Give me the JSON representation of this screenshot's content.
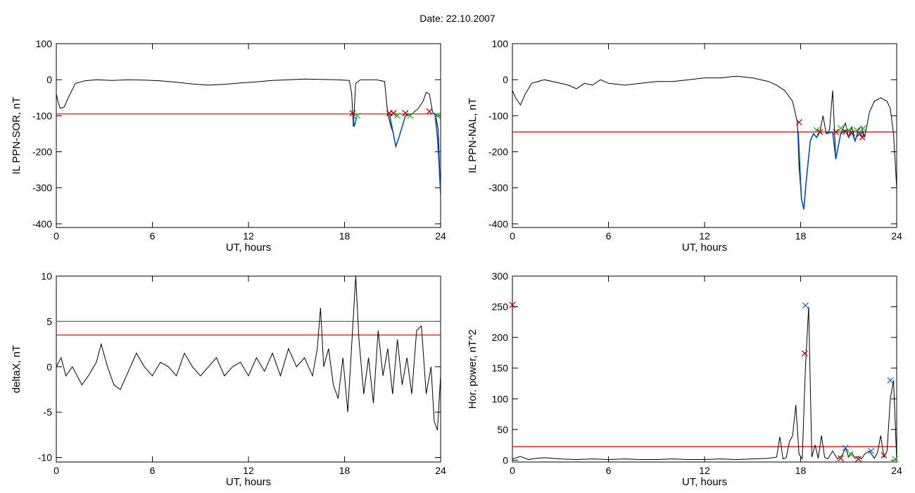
{
  "page_title": "Date:  22.10.2007",
  "colors": {
    "trace": "#000000",
    "threshold": "#cc0000",
    "upper_threshold": "#1a8a8a",
    "highlight": "#0050c8",
    "marker_red": "#c00000",
    "marker_green": "#20c020",
    "marker_blue": "#1f6fd6"
  },
  "chart_data": [
    {
      "type": "line",
      "title": "",
      "xlabel": "UT, hours",
      "ylabel": "IL PPN-SOR, nT",
      "xlim": [
        0,
        24
      ],
      "ylim": [
        -410,
        100
      ],
      "x_ticks": [
        0,
        6,
        12,
        18,
        24
      ],
      "y_ticks": [
        100,
        0,
        -100,
        -200,
        -300,
        -400
      ],
      "grid": false,
      "threshold": -95,
      "series": [
        {
          "x": [
            0,
            0.1,
            0.25,
            0.5,
            0.8,
            1.2,
            1.8,
            2.5,
            3.5,
            4.5,
            5.5,
            6.5,
            7.5,
            8.5,
            9.5,
            10.5,
            11.5,
            12.5,
            13.5,
            14.5,
            15.5,
            16.5,
            17.5,
            18.3,
            18.45,
            18.55,
            18.7,
            19,
            20,
            20.5,
            20.7,
            20.9,
            21.05,
            21.2,
            21.4,
            21.6,
            21.8,
            22.2,
            22.6,
            22.9,
            23.1,
            23.3,
            23.5,
            23.7,
            23.85,
            24
          ],
          "y": [
            -40,
            -60,
            -80,
            -75,
            -45,
            -10,
            -3,
            0,
            -2,
            0,
            -1,
            -3,
            -7,
            -12,
            -15,
            -13,
            -9,
            -6,
            -2,
            0,
            2,
            1,
            0,
            -2,
            -40,
            -130,
            -10,
            0,
            0,
            -5,
            -95,
            -130,
            -150,
            -185,
            -160,
            -130,
            -100,
            -95,
            -80,
            -60,
            -35,
            -40,
            -90,
            -100,
            -140,
            -320
          ]
        }
      ],
      "highlight_segments": [
        {
          "x": [
            18.5,
            18.6,
            18.75
          ],
          "y": [
            -95,
            -130,
            -105
          ]
        },
        {
          "x": [
            20.8,
            21.05,
            21.2,
            21.4,
            21.6,
            21.8,
            22
          ],
          "y": [
            -95,
            -150,
            -185,
            -160,
            -130,
            -100,
            -95
          ]
        },
        {
          "x": [
            23.65,
            23.8,
            23.9,
            24
          ],
          "y": [
            -95,
            -160,
            -230,
            -320
          ]
        }
      ],
      "markers": [
        {
          "x": 18.5,
          "y": -93,
          "color": "red"
        },
        {
          "x": 18.8,
          "y": -100,
          "color": "green"
        },
        {
          "x": 20.8,
          "y": -93,
          "color": "red"
        },
        {
          "x": 21.05,
          "y": -93,
          "color": "red"
        },
        {
          "x": 21.3,
          "y": -100,
          "color": "green"
        },
        {
          "x": 21.8,
          "y": -93,
          "color": "red"
        },
        {
          "x": 22.1,
          "y": -100,
          "color": "green"
        },
        {
          "x": 23.3,
          "y": -88,
          "color": "red"
        },
        {
          "x": 23.8,
          "y": -100,
          "color": "green"
        }
      ]
    },
    {
      "type": "line",
      "title": "",
      "xlabel": "UT, hours",
      "ylabel": "IL PPN-NAL, nT",
      "xlim": [
        0,
        24
      ],
      "ylim": [
        -410,
        100
      ],
      "x_ticks": [
        0,
        6,
        12,
        18,
        24
      ],
      "y_ticks": [
        100,
        0,
        -100,
        -200,
        -300,
        -400
      ],
      "grid": false,
      "threshold": -145,
      "series": [
        {
          "x": [
            0,
            0.2,
            0.5,
            0.8,
            1.2,
            2,
            3,
            3.5,
            4,
            4.5,
            5,
            5.5,
            6,
            7,
            8,
            9,
            10,
            11,
            12,
            13,
            14,
            15,
            16,
            16.5,
            17,
            17.5,
            17.8,
            17.9,
            18.05,
            18.2,
            18.35,
            18.6,
            18.8,
            19,
            19.2,
            19.4,
            19.6,
            19.8,
            20,
            20.2,
            20.5,
            20.8,
            21,
            21.2,
            21.4,
            21.6,
            21.8,
            22,
            22.3,
            22.6,
            23,
            23.4,
            23.6,
            23.8,
            24
          ],
          "y": [
            -30,
            -50,
            -70,
            -40,
            -10,
            0,
            -10,
            -15,
            -25,
            -10,
            -15,
            0,
            -10,
            -15,
            -10,
            -5,
            -5,
            0,
            5,
            5,
            10,
            5,
            -5,
            -15,
            -30,
            -60,
            -120,
            -240,
            -330,
            -360,
            -280,
            -170,
            -150,
            -160,
            -145,
            -100,
            -150,
            -140,
            -30,
            -220,
            -150,
            -120,
            -160,
            -130,
            -170,
            -140,
            -130,
            -160,
            -90,
            -60,
            -50,
            -60,
            -80,
            -150,
            -300
          ]
        }
      ],
      "highlight_segments": [
        {
          "x": [
            17.85,
            18.05,
            18.2,
            18.35,
            18.6,
            18.8,
            19,
            19.2
          ],
          "y": [
            -145,
            -330,
            -360,
            -280,
            -170,
            -150,
            -160,
            -145
          ]
        },
        {
          "x": [
            19.6,
            20,
            20.2,
            20.5,
            20.8,
            21,
            21.2,
            21.4,
            21.6,
            21.8,
            22
          ],
          "y": [
            -150,
            -145,
            -220,
            -150,
            -140,
            -160,
            -145,
            -170,
            -145,
            -145,
            -160
          ]
        }
      ],
      "markers": [
        {
          "x": 17.9,
          "y": -118,
          "color": "red"
        },
        {
          "x": 19,
          "y": -140,
          "color": "green"
        },
        {
          "x": 19.2,
          "y": -145,
          "color": "red"
        },
        {
          "x": 20.2,
          "y": -145,
          "color": "red"
        },
        {
          "x": 20.5,
          "y": -135,
          "color": "green"
        },
        {
          "x": 20.8,
          "y": -145,
          "color": "red"
        },
        {
          "x": 21.0,
          "y": -140,
          "color": "green"
        },
        {
          "x": 21.2,
          "y": -148,
          "color": "red"
        },
        {
          "x": 21.5,
          "y": -140,
          "color": "green"
        },
        {
          "x": 21.7,
          "y": -150,
          "color": "red"
        },
        {
          "x": 21.85,
          "y": -160,
          "color": "red"
        },
        {
          "x": 21.9,
          "y": -135,
          "color": "green"
        }
      ]
    },
    {
      "type": "line",
      "title": "",
      "xlabel": "UT, hours",
      "ylabel": "deltaX, nT",
      "xlim": [
        0,
        24
      ],
      "ylim": [
        -10.5,
        10
      ],
      "x_ticks": [
        0,
        6,
        12,
        18,
        24
      ],
      "y_ticks": [
        10,
        5,
        0,
        -5,
        -10
      ],
      "grid": false,
      "threshold": 3.5,
      "upper_threshold": 5,
      "series": [
        {
          "x": [
            0,
            0.3,
            0.6,
            1,
            1.3,
            1.6,
            2,
            2.5,
            2.8,
            3.2,
            3.6,
            4,
            4.5,
            5,
            5.5,
            6,
            6.5,
            7,
            7.5,
            8,
            8.5,
            9,
            9.5,
            10,
            10.5,
            11,
            11.5,
            12,
            12.5,
            13,
            13.5,
            14,
            14.5,
            15,
            15.5,
            16,
            16.3,
            16.5,
            16.7,
            17,
            17.3,
            17.6,
            17.9,
            18.2,
            18.5,
            18.7,
            18.9,
            19.2,
            19.5,
            19.8,
            20.1,
            20.4,
            20.7,
            21,
            21.3,
            21.6,
            21.9,
            22.2,
            22.5,
            22.8,
            23.1,
            23.4,
            23.6,
            23.8,
            24
          ],
          "y": [
            0,
            1,
            -1,
            0,
            -1,
            -2,
            -1,
            0.5,
            2.5,
            0,
            -2,
            -2.5,
            -0.5,
            1.5,
            0,
            -1,
            0.5,
            0,
            -1,
            1.5,
            0,
            -1,
            0,
            1,
            -1,
            0,
            0.5,
            -1,
            1,
            -0.5,
            1.5,
            -1,
            2,
            0,
            1,
            -1,
            2,
            6.5,
            0,
            2,
            -2,
            -3.5,
            1,
            -5,
            4,
            10,
            3,
            -3,
            1,
            -4,
            4,
            -1,
            2,
            -3,
            3,
            -2,
            1,
            -3,
            4,
            4.5,
            -3,
            0,
            -6,
            -7,
            -1
          ]
        }
      ],
      "markers": []
    },
    {
      "type": "line",
      "title": "",
      "xlabel": "UT, hours",
      "ylabel": "Hor. power, nT^2",
      "xlim": [
        0,
        24
      ],
      "ylim": [
        -3,
        300
      ],
      "x_ticks": [
        0,
        6,
        12,
        18,
        24
      ],
      "y_ticks": [
        300,
        250,
        200,
        150,
        100,
        50,
        0
      ],
      "grid": false,
      "threshold": 22,
      "series": [
        {
          "x": [
            0,
            0.5,
            1,
            1.5,
            2,
            3,
            4,
            5,
            6,
            7,
            8,
            9,
            10,
            11,
            12,
            13,
            14,
            15,
            16,
            16.5,
            16.7,
            16.9,
            17.1,
            17.3,
            17.5,
            17.7,
            17.9,
            18.1,
            18.3,
            18.5,
            18.7,
            18.9,
            19.1,
            19.3,
            19.5,
            19.7,
            20,
            20.3,
            20.6,
            20.8,
            21,
            21.2,
            21.4,
            21.6,
            21.8,
            22,
            22.3,
            22.6,
            22.8,
            23,
            23.2,
            23.4,
            23.6,
            23.8,
            24
          ],
          "y": [
            2,
            6,
            1,
            3,
            4,
            2,
            1,
            2,
            1,
            2,
            1,
            1,
            2,
            1,
            1,
            2,
            1,
            2,
            3,
            5,
            38,
            2,
            4,
            30,
            40,
            90,
            10,
            2,
            150,
            250,
            5,
            25,
            3,
            40,
            5,
            2,
            15,
            2,
            8,
            20,
            5,
            12,
            3,
            6,
            2,
            10,
            15,
            3,
            12,
            40,
            5,
            15,
            100,
            130,
            0
          ]
        }
      ],
      "markers": [
        {
          "x": 0,
          "y": 253,
          "color": "red"
        },
        {
          "x": 18.3,
          "y": 252,
          "color": "blue"
        },
        {
          "x": 18.25,
          "y": 174,
          "color": "red"
        },
        {
          "x": 20.5,
          "y": 3,
          "color": "red"
        },
        {
          "x": 20.8,
          "y": 20,
          "color": "blue"
        },
        {
          "x": 21.1,
          "y": 10,
          "color": "green"
        },
        {
          "x": 21.6,
          "y": 2,
          "color": "red"
        },
        {
          "x": 22.4,
          "y": 15,
          "color": "blue"
        },
        {
          "x": 23.2,
          "y": 8,
          "color": "red"
        },
        {
          "x": 23.6,
          "y": 130,
          "color": "blue"
        },
        {
          "x": 23.9,
          "y": 2,
          "color": "green"
        }
      ]
    }
  ]
}
